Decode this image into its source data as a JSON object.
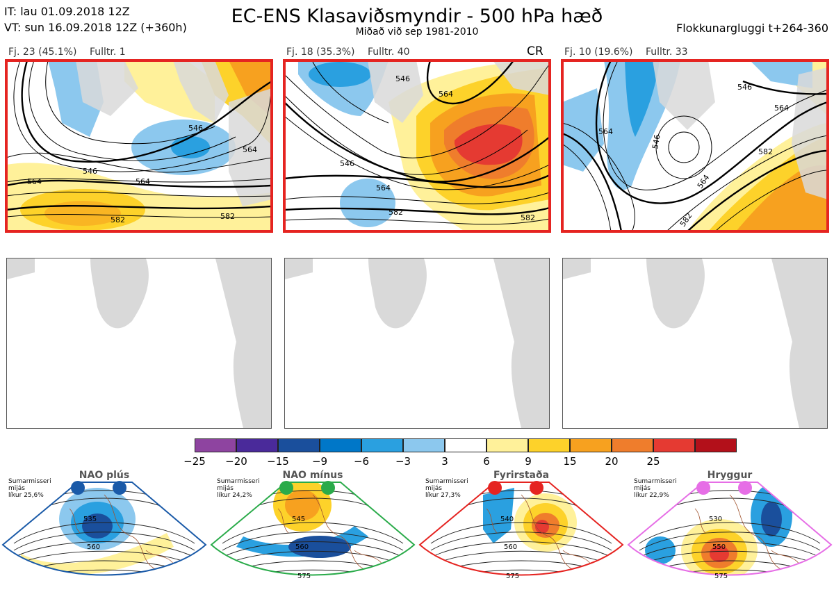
{
  "header": {
    "init_time": "IT: lau 01.09.2018 12Z",
    "valid_time": "VT: sun 16.09.2018 12Z  (+360h)",
    "title": "EC-ENS Klasaviðsmyndir - 500 hPa hæð",
    "subtitle": "Miðað við sep 1981-2010",
    "window": "Flokkunargluggi t+264-360"
  },
  "clusters": [
    {
      "count_label": "Fj. 23 (45.1%)",
      "rep_label": "Fulltr. 1",
      "tag": "",
      "contour_labels": [
        "546",
        "546",
        "564",
        "564",
        "582",
        "582",
        "564"
      ]
    },
    {
      "count_label": "Fj. 18 (35.3%)",
      "rep_label": "Fulltr. 40",
      "tag": "CR",
      "contour_labels": [
        "546",
        "546",
        "564",
        "582",
        "564",
        "582"
      ]
    },
    {
      "count_label": "Fj. 10 (19.6%)",
      "rep_label": "Fulltr. 33",
      "tag": "",
      "contour_labels": [
        "546",
        "564",
        "564",
        "546",
        "582",
        "564",
        "582"
      ]
    }
  ],
  "colorbar": {
    "ticks": [
      "−25",
      "−20",
      "−15",
      "−9",
      "−6",
      "−3",
      "3",
      "6",
      "9",
      "15",
      "20",
      "25"
    ],
    "colors": [
      "#8e44a0",
      "#4a2a9a",
      "#1a4f9c",
      "#0077c8",
      "#2aa0e0",
      "#8cc8ee",
      "#ffffff",
      "#fff19a",
      "#fdd22a",
      "#f7a11f",
      "#ef7d2c",
      "#e53a32",
      "#b3101a"
    ]
  },
  "regimes": [
    {
      "name": "NAO plús",
      "note": [
        "Sumarmisseri",
        "mijás",
        "líkur 25,6%"
      ],
      "color": "#1a5aa8",
      "labels": [
        "535",
        "560"
      ]
    },
    {
      "name": "NAO mínus",
      "note": [
        "Sumarmisseri",
        "mijás",
        "líkur 24,2%"
      ],
      "color": "#2aab4a",
      "labels": [
        "545",
        "560",
        "575"
      ]
    },
    {
      "name": "Fyrirstaða",
      "note": [
        "Sumarmisseri",
        "mijás",
        "líkur 27,3%"
      ],
      "color": "#e52421",
      "labels": [
        "540",
        "560",
        "575"
      ]
    },
    {
      "name": "Hryggur",
      "note": [
        "Sumarmisseri",
        "mijás",
        "líkur 22,9%"
      ],
      "color": "#e66ee6",
      "labels": [
        "530",
        "550",
        "575"
      ]
    }
  ]
}
